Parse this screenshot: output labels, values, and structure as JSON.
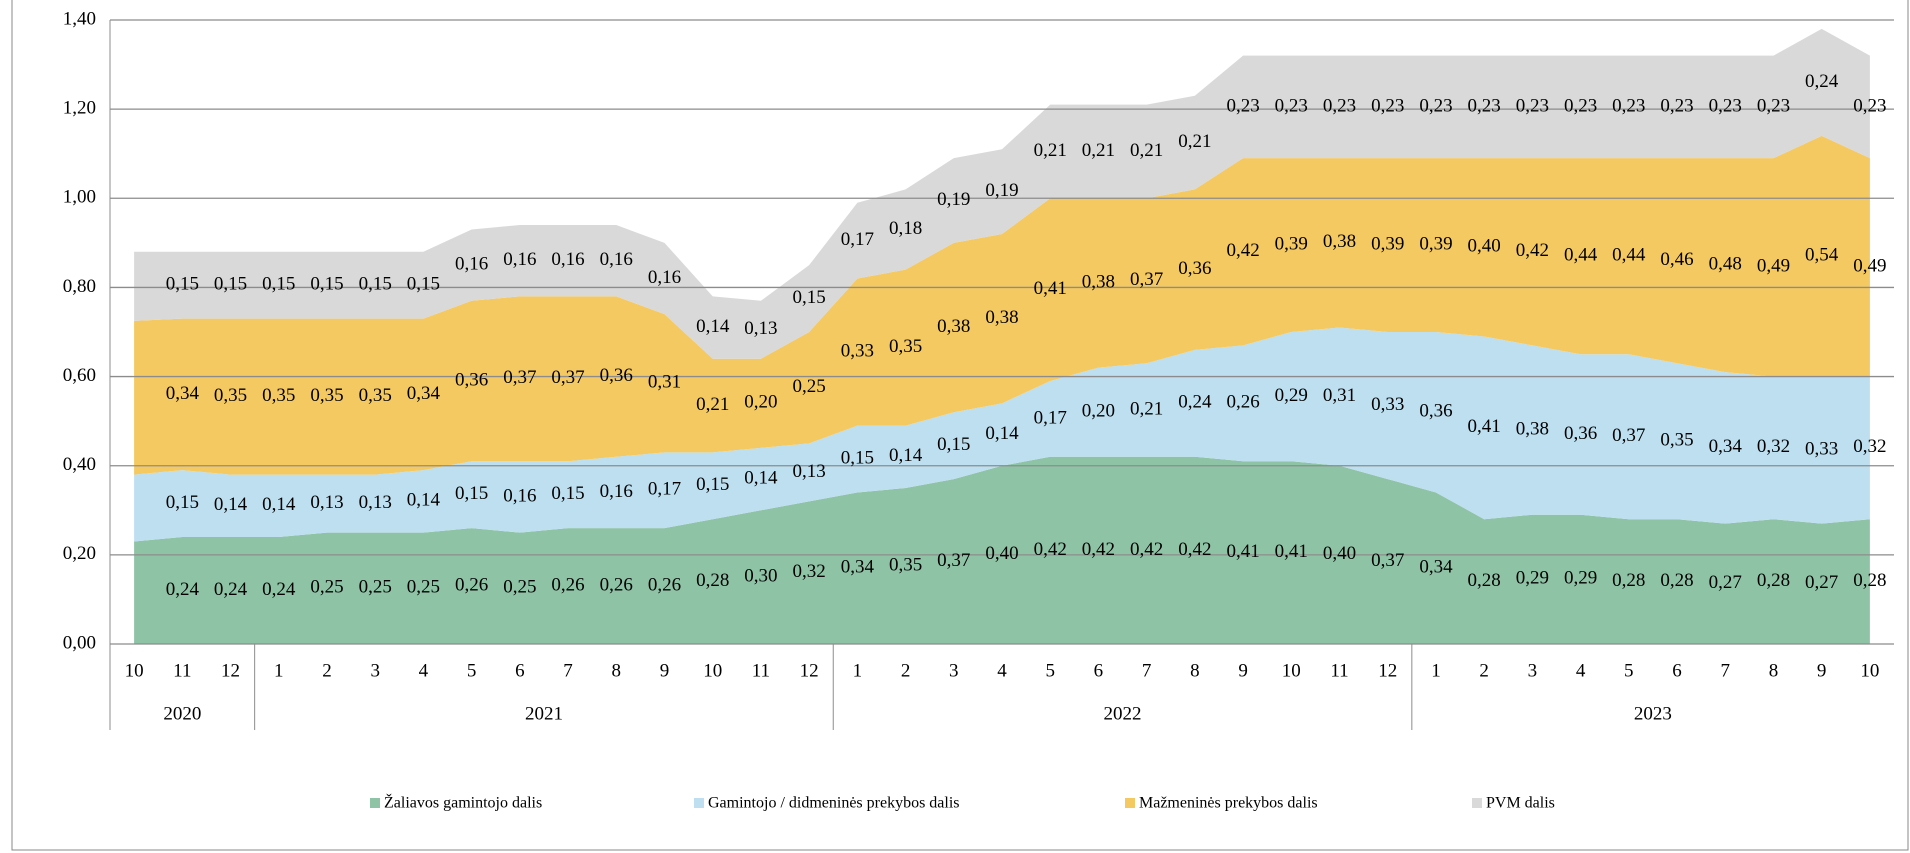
{
  "chart_data": {
    "type": "stacked_area",
    "categories": [
      "10",
      "11",
      "12",
      "1",
      "2",
      "3",
      "4",
      "5",
      "6",
      "7",
      "8",
      "9",
      "10",
      "11",
      "12",
      "1",
      "2",
      "3",
      "4",
      "5",
      "6",
      "7",
      "8",
      "9",
      "10",
      "11",
      "12",
      "1",
      "2",
      "3",
      "4",
      "5",
      "6",
      "7",
      "8",
      "9",
      "10"
    ],
    "groups": [
      {
        "label": "2020",
        "count": 3
      },
      {
        "label": "2021",
        "count": 12
      },
      {
        "label": "2022",
        "count": 12
      },
      {
        "label": "2023",
        "count": 10
      }
    ],
    "ylim": [
      0,
      1.4
    ],
    "yticks": [
      {
        "value": 0,
        "label": "0,00"
      },
      {
        "value": 0.2,
        "label": "0,20"
      },
      {
        "value": 0.4,
        "label": "0,40"
      },
      {
        "value": 0.6,
        "label": "0,60"
      },
      {
        "value": 0.8,
        "label": "0,80"
      },
      {
        "value": 1.0,
        "label": "1,00"
      },
      {
        "value": 1.2,
        "label": "1,20"
      },
      {
        "value": 1.4,
        "label": "1,40"
      }
    ],
    "grid": true,
    "series": [
      {
        "name": "Žaliavos gamintojo dalis",
        "color": "#8fc3a6",
        "values": [
          0.23,
          0.24,
          0.24,
          0.24,
          0.25,
          0.25,
          0.25,
          0.26,
          0.25,
          0.26,
          0.26,
          0.26,
          0.28,
          0.3,
          0.32,
          0.34,
          0.35,
          0.37,
          0.4,
          0.42,
          0.42,
          0.42,
          0.42,
          0.41,
          0.41,
          0.4,
          0.37,
          0.34,
          0.28,
          0.29,
          0.29,
          0.28,
          0.28,
          0.27,
          0.28,
          0.27,
          0.28
        ],
        "value_labels": [
          null,
          "0,24",
          "0,24",
          "0,24",
          "0,25",
          "0,25",
          "0,25",
          "0,26",
          "0,25",
          "0,26",
          "0,26",
          "0,26",
          "0,28",
          "0,30",
          "0,32",
          "0,34",
          "0,35",
          "0,37",
          "0,40",
          "0,42",
          "0,42",
          "0,42",
          "0,42",
          "0,41",
          "0,41",
          "0,40",
          "0,37",
          "0,34",
          "0,28",
          "0,29",
          "0,29",
          "0,28",
          "0,28",
          "0,27",
          "0,28",
          "0,27",
          "0,28"
        ]
      },
      {
        "name": "Gamintojo / didmeninės prekybos dalis",
        "color": "#bddff0",
        "values": [
          0.15,
          0.15,
          0.14,
          0.14,
          0.13,
          0.13,
          0.14,
          0.15,
          0.16,
          0.15,
          0.16,
          0.17,
          0.15,
          0.14,
          0.13,
          0.15,
          0.14,
          0.15,
          0.14,
          0.17,
          0.2,
          0.21,
          0.24,
          0.26,
          0.29,
          0.31,
          0.33,
          0.36,
          0.41,
          0.38,
          0.36,
          0.37,
          0.35,
          0.34,
          0.32,
          0.33,
          0.32
        ],
        "value_labels": [
          null,
          "0,15",
          "0,14",
          "0,14",
          "0,13",
          "0,13",
          "0,14",
          "0,15",
          "0,16",
          "0,15",
          "0,16",
          "0,17",
          "0,15",
          "0,14",
          "0,13",
          "0,15",
          "0,14",
          "0,15",
          "0,14",
          "0,17",
          "0,20",
          "0,21",
          "0,24",
          "0,26",
          "0,29",
          "0,31",
          "0,33",
          "0,36",
          "0,41",
          "0,38",
          "0,36",
          "0,37",
          "0,35",
          "0,34",
          "0,32",
          "0,33",
          "0,32"
        ]
      },
      {
        "name": "Mažmeninės prekybos dalis",
        "color": "#f5c962",
        "values": [
          0.345,
          0.34,
          0.35,
          0.35,
          0.35,
          0.35,
          0.34,
          0.36,
          0.37,
          0.37,
          0.36,
          0.31,
          0.21,
          0.2,
          0.25,
          0.33,
          0.35,
          0.38,
          0.38,
          0.41,
          0.38,
          0.37,
          0.36,
          0.42,
          0.39,
          0.38,
          0.39,
          0.39,
          0.4,
          0.42,
          0.44,
          0.44,
          0.46,
          0.48,
          0.49,
          0.54,
          0.49
        ],
        "value_labels": [
          null,
          "0,34",
          "0,35",
          "0,35",
          "0,35",
          "0,35",
          "0,34",
          "0,36",
          "0,37",
          "0,37",
          "0,36",
          "0,31",
          "0,21",
          "0,20",
          "0,25",
          "0,33",
          "0,35",
          "0,38",
          "0,38",
          "0,41",
          "0,38",
          "0,37",
          "0,36",
          "0,42",
          "0,39",
          "0,38",
          "0,39",
          "0,39",
          "0,40",
          "0,42",
          "0,44",
          "0,44",
          "0,46",
          "0,48",
          "0,49",
          "0,54",
          "0,49"
        ]
      },
      {
        "name": "PVM dalis",
        "color": "#d9d9d9",
        "values": [
          0.155,
          0.15,
          0.15,
          0.15,
          0.15,
          0.15,
          0.15,
          0.16,
          0.16,
          0.16,
          0.16,
          0.16,
          0.14,
          0.13,
          0.15,
          0.17,
          0.18,
          0.19,
          0.19,
          0.21,
          0.21,
          0.21,
          0.21,
          0.23,
          0.23,
          0.23,
          0.23,
          0.23,
          0.23,
          0.23,
          0.23,
          0.23,
          0.23,
          0.23,
          0.23,
          0.24,
          0.23
        ],
        "value_labels": [
          null,
          "0,15",
          "0,15",
          "0,15",
          "0,15",
          "0,15",
          "0,15",
          "0,16",
          "0,16",
          "0,16",
          "0,16",
          "0,16",
          "0,14",
          "0,13",
          "0,15",
          "0,17",
          "0,18",
          "0,19",
          "0,19",
          "0,21",
          "0,21",
          "0,21",
          "0,21",
          "0,23",
          "0,23",
          "0,23",
          "0,23",
          "0,23",
          "0,23",
          "0,23",
          "0,23",
          "0,23",
          "0,23",
          "0,23",
          "0,23",
          "0,24",
          "0,23"
        ]
      }
    ]
  }
}
